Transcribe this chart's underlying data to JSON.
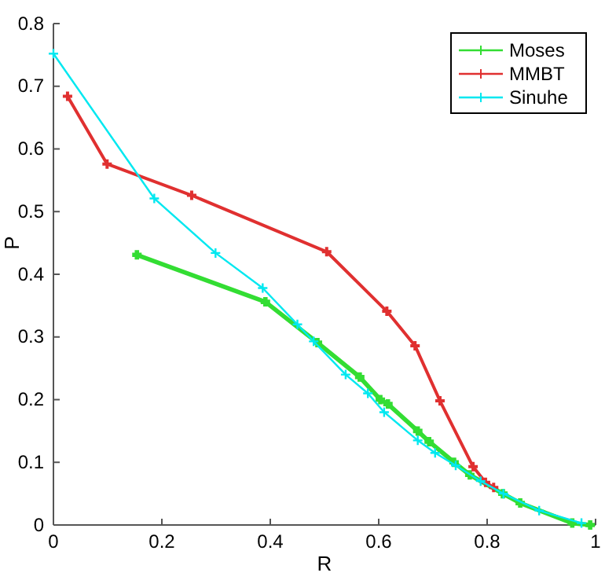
{
  "chart_data": {
    "type": "line",
    "xlabel": "R",
    "ylabel": "P",
    "xlim": [
      0,
      1
    ],
    "ylim": [
      0,
      0.8
    ],
    "xticks": [
      0,
      0.2,
      0.4,
      0.6,
      0.8,
      1
    ],
    "yticks": [
      0,
      0.1,
      0.2,
      0.3,
      0.4,
      0.5,
      0.6,
      0.7,
      0.8
    ],
    "grid": false,
    "legend": "top right",
    "marker": "cross",
    "line_style": "solid",
    "series": [
      {
        "name": "Moses",
        "color": "#33dd33",
        "x": [
          0.154,
          0.391,
          0.487,
          0.565,
          0.603,
          0.617,
          0.672,
          0.693,
          0.739,
          0.768,
          0.829,
          0.861,
          0.957,
          0.99
        ],
        "values": [
          0.431,
          0.356,
          0.291,
          0.236,
          0.2,
          0.193,
          0.15,
          0.133,
          0.1,
          0.08,
          0.05,
          0.035,
          0.003,
          0
        ]
      },
      {
        "name": "MMBT",
        "color": "#e03030",
        "x": [
          0.026,
          0.099,
          0.255,
          0.504,
          0.615,
          0.667,
          0.713,
          0.774,
          0.797,
          0.812
        ],
        "values": [
          0.684,
          0.576,
          0.526,
          0.436,
          0.341,
          0.286,
          0.198,
          0.093,
          0.068,
          0.06
        ]
      },
      {
        "name": "Sinuhe",
        "color": "#00e8f0",
        "x": [
          0,
          0.186,
          0.299,
          0.386,
          0.45,
          0.48,
          0.539,
          0.58,
          0.61,
          0.672,
          0.704,
          0.742,
          0.788,
          0.83,
          0.896,
          0.974
        ],
        "values": [
          0.752,
          0.521,
          0.434,
          0.378,
          0.32,
          0.293,
          0.24,
          0.21,
          0.18,
          0.135,
          0.115,
          0.095,
          0.07,
          0.05,
          0.023,
          0.003
        ]
      }
    ]
  }
}
